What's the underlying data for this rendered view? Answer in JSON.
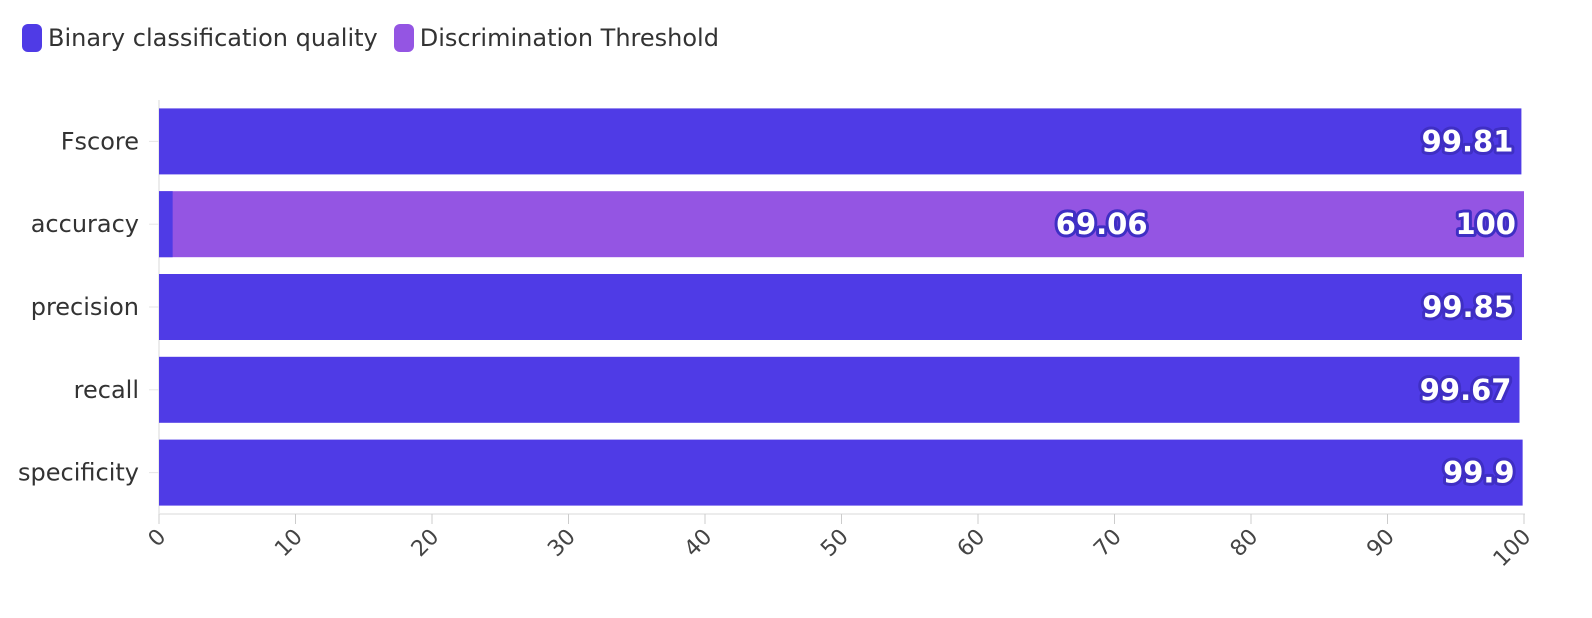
{
  "chart_data": {
    "type": "bar",
    "orientation": "horizontal",
    "stacked": false,
    "categories": [
      "Fscore",
      "accuracy",
      "precision",
      "recall",
      "specificity"
    ],
    "series": [
      {
        "name": "Binary classification quality",
        "color": "#4f3be6",
        "values": [
          99.81,
          1,
          99.85,
          99.67,
          99.9
        ],
        "labels": [
          "99.81",
          "",
          "99.85",
          "99.67",
          "99.9"
        ]
      },
      {
        "name": "Discrimination Threshold",
        "color": "#9455e3",
        "values": [
          0,
          100,
          0,
          0,
          0
        ],
        "labels": [
          "",
          "100",
          "",
          "",
          ""
        ]
      }
    ],
    "annotations": [
      {
        "category": "accuracy",
        "text": "69.06",
        "x": 69.06
      }
    ],
    "xlim": [
      0,
      100
    ],
    "xticks": [
      "0",
      "10",
      "20",
      "30",
      "40",
      "50",
      "60",
      "70",
      "80",
      "90",
      "100"
    ],
    "legend_position": "top-left",
    "grid": false
  }
}
